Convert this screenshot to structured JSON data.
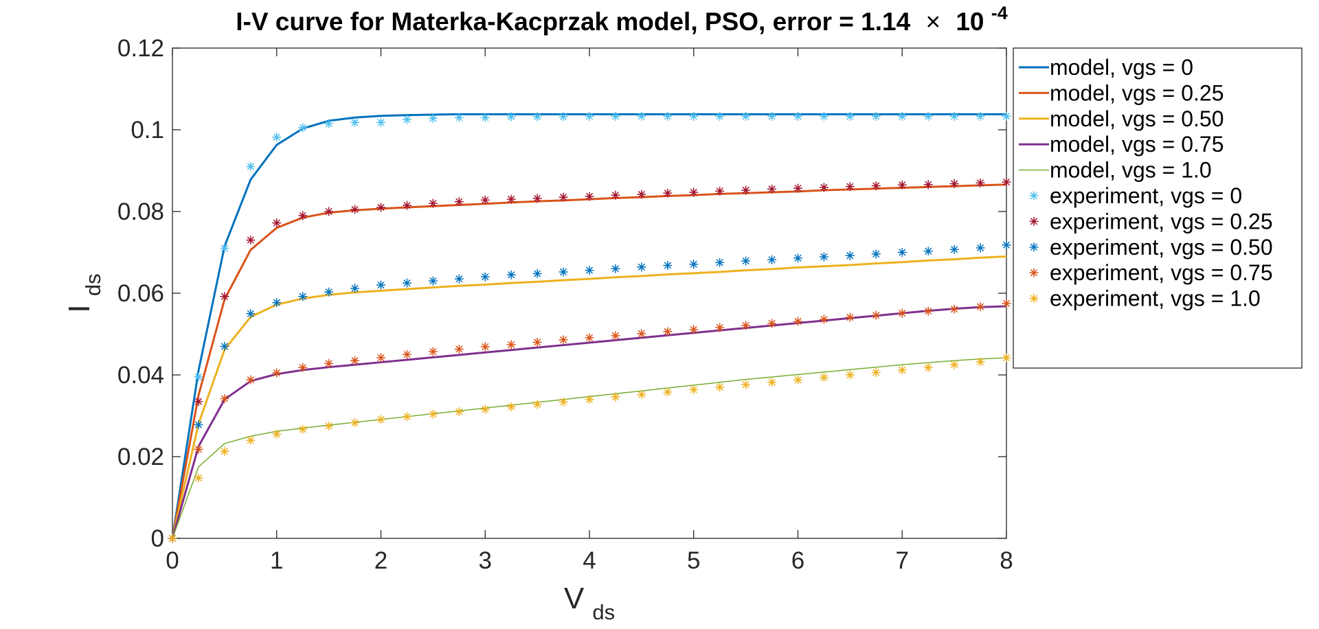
{
  "chart_data": {
    "type": "line",
    "title": {
      "main": "I-V curve for Materka-Kacprzak model,  PSO, error = 1.14",
      "times": "×",
      "base": "10",
      "exponent": "-4"
    },
    "xlabel": {
      "main": "V",
      "sub": "ds"
    },
    "ylabel": {
      "main": "I",
      "sub": "ds"
    },
    "xlim": [
      0,
      8
    ],
    "ylim": [
      0,
      0.12
    ],
    "xticks": [
      0,
      1,
      2,
      3,
      4,
      5,
      6,
      7,
      8
    ],
    "xtick_labels": [
      "0",
      "1",
      "2",
      "3",
      "4",
      "5",
      "6",
      "7",
      "8"
    ],
    "yticks": [
      0,
      0.02,
      0.04,
      0.06,
      0.08,
      0.1,
      0.12
    ],
    "ytick_labels": [
      "0",
      "0.02",
      "0.04",
      "0.06",
      "0.08",
      "0.1",
      "0.12"
    ],
    "grid": false,
    "legend_position": "outside-top-right",
    "x": [
      0,
      0.25,
      0.5,
      0.75,
      1.0,
      1.25,
      1.5,
      1.75,
      2.0,
      2.25,
      2.5,
      2.75,
      3.0,
      3.25,
      3.5,
      3.75,
      4.0,
      4.25,
      4.5,
      4.75,
      5.0,
      5.25,
      5.5,
      5.75,
      6.0,
      6.25,
      6.5,
      6.75,
      7.0,
      7.25,
      7.5,
      7.75,
      8.0
    ],
    "series": [
      {
        "name": "model, vgs = 0",
        "style": "line",
        "color": "#0072BD",
        "width": 3,
        "values": [
          0,
          0.041,
          0.0715,
          0.0878,
          0.0963,
          0.1003,
          0.1022,
          0.103,
          0.1034,
          0.1036,
          0.1037,
          0.1038,
          0.1038,
          0.1038,
          0.1038,
          0.1038,
          0.1038,
          0.1038,
          0.1038,
          0.1038,
          0.1038,
          0.1038,
          0.1038,
          0.1038,
          0.1038,
          0.1038,
          0.1038,
          0.1038,
          0.1038,
          0.1038,
          0.1038,
          0.1038,
          0.1038
        ]
      },
      {
        "name": "model, vgs = 0.25",
        "style": "line",
        "color": "#D95319",
        "width": 3,
        "values": [
          0,
          0.035,
          0.0585,
          0.0706,
          0.076,
          0.0785,
          0.0797,
          0.0803,
          0.0807,
          0.081,
          0.0813,
          0.0816,
          0.0819,
          0.0822,
          0.0825,
          0.0827,
          0.083,
          0.0833,
          0.0835,
          0.0838,
          0.084,
          0.0843,
          0.0845,
          0.0847,
          0.0849,
          0.0852,
          0.0854,
          0.0856,
          0.0858,
          0.086,
          0.0862,
          0.0864,
          0.0866
        ]
      },
      {
        "name": "model, vgs = 0.50",
        "style": "line",
        "color": "#EDB120",
        "width": 3,
        "values": [
          0,
          0.028,
          0.0462,
          0.0542,
          0.0572,
          0.0587,
          0.0596,
          0.0602,
          0.0606,
          0.061,
          0.0614,
          0.0618,
          0.0621,
          0.0625,
          0.0628,
          0.0632,
          0.0635,
          0.0639,
          0.0642,
          0.0646,
          0.0649,
          0.0652,
          0.0656,
          0.0659,
          0.0663,
          0.0666,
          0.0669,
          0.0673,
          0.0676,
          0.068,
          0.0683,
          0.0687,
          0.069
        ]
      },
      {
        "name": "model, vgs = 0.75",
        "style": "line",
        "color": "#7E2F8E",
        "width": 3,
        "values": [
          0,
          0.0225,
          0.034,
          0.0385,
          0.0402,
          0.0412,
          0.0419,
          0.0425,
          0.0431,
          0.0437,
          0.0443,
          0.0449,
          0.0455,
          0.0461,
          0.0467,
          0.0473,
          0.0479,
          0.0485,
          0.0491,
          0.0497,
          0.0503,
          0.0509,
          0.0515,
          0.0521,
          0.0527,
          0.0533,
          0.0539,
          0.0545,
          0.0551,
          0.0557,
          0.0562,
          0.0566,
          0.0568
        ]
      },
      {
        "name": "model, vgs = 1.0",
        "style": "line",
        "color": "#77AC30",
        "width": 1.5,
        "values": [
          0,
          0.0175,
          0.0232,
          0.025,
          0.0262,
          0.027,
          0.0277,
          0.0284,
          0.0291,
          0.0298,
          0.0305,
          0.0312,
          0.0319,
          0.0326,
          0.0333,
          0.034,
          0.0347,
          0.0354,
          0.0361,
          0.0368,
          0.0375,
          0.0382,
          0.0389,
          0.0395,
          0.0401,
          0.0407,
          0.0413,
          0.0419,
          0.0425,
          0.043,
          0.0435,
          0.0439,
          0.0442
        ]
      },
      {
        "name": "experiment, vgs = 0",
        "style": "marker",
        "color": "#4DBEEE",
        "values": [
          0,
          0.0395,
          0.071,
          0.091,
          0.0982,
          0.1005,
          0.1015,
          0.1018,
          0.1018,
          0.1025,
          0.1028,
          0.103,
          0.103,
          0.1032,
          0.1032,
          0.1032,
          0.1033,
          0.1033,
          0.1033,
          0.1033,
          0.1033,
          0.1033,
          0.1033,
          0.1033,
          0.1033,
          0.1033,
          0.1033,
          0.1033,
          0.1033,
          0.1033,
          0.1033,
          0.1033,
          0.1033
        ]
      },
      {
        "name": "experiment, vgs = 0.25",
        "style": "marker",
        "color": "#A2142F",
        "values": [
          0,
          0.0335,
          0.0592,
          0.073,
          0.0772,
          0.079,
          0.08,
          0.0805,
          0.081,
          0.0815,
          0.082,
          0.0824,
          0.0828,
          0.083,
          0.0832,
          0.0835,
          0.0837,
          0.084,
          0.0842,
          0.0845,
          0.0847,
          0.085,
          0.0852,
          0.0855,
          0.0857,
          0.0859,
          0.0861,
          0.0863,
          0.0865,
          0.0866,
          0.0868,
          0.087,
          0.0872
        ]
      },
      {
        "name": "experiment, vgs = 0.50",
        "style": "marker",
        "color": "#0072BD",
        "values": [
          0,
          0.0278,
          0.047,
          0.055,
          0.0577,
          0.0592,
          0.0603,
          0.0612,
          0.062,
          0.0625,
          0.063,
          0.0635,
          0.064,
          0.0645,
          0.0648,
          0.0652,
          0.0656,
          0.066,
          0.0664,
          0.0668,
          0.0671,
          0.0675,
          0.0679,
          0.0682,
          0.0686,
          0.0689,
          0.0692,
          0.0696,
          0.07,
          0.0703,
          0.0707,
          0.0711,
          0.0718
        ]
      },
      {
        "name": "experiment, vgs = 0.75",
        "style": "marker",
        "color": "#D95319",
        "values": [
          0,
          0.0218,
          0.0342,
          0.0388,
          0.0405,
          0.0418,
          0.0428,
          0.0435,
          0.0442,
          0.045,
          0.0457,
          0.0463,
          0.0469,
          0.0474,
          0.048,
          0.0486,
          0.0491,
          0.0496,
          0.0501,
          0.0506,
          0.0511,
          0.0516,
          0.0521,
          0.0526,
          0.0531,
          0.0536,
          0.0541,
          0.0546,
          0.0551,
          0.0556,
          0.0561,
          0.0567,
          0.0575
        ]
      },
      {
        "name": "experiment, vgs = 1.0",
        "style": "marker",
        "color": "#EDB120",
        "values": [
          0,
          0.0148,
          0.0213,
          0.024,
          0.0255,
          0.0267,
          0.0275,
          0.0283,
          0.0291,
          0.0298,
          0.0304,
          0.031,
          0.0316,
          0.0322,
          0.0328,
          0.0334,
          0.034,
          0.0346,
          0.0352,
          0.0358,
          0.0364,
          0.037,
          0.0376,
          0.0382,
          0.0388,
          0.0394,
          0.04,
          0.0406,
          0.0412,
          0.0418,
          0.0425,
          0.0432,
          0.0442
        ]
      }
    ]
  }
}
